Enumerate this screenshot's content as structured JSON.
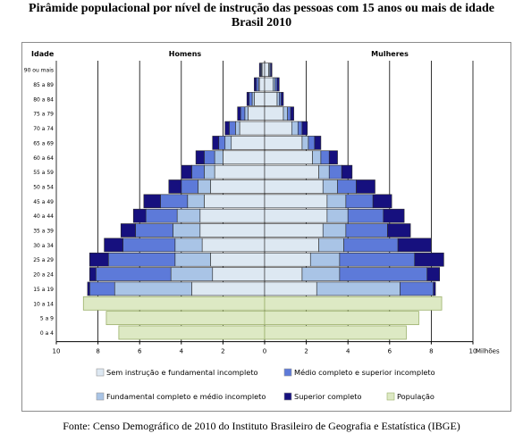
{
  "title_line1": "Pirâmide populacional por nível de instrução das pessoas com 15 anos ou mais de idade",
  "title_line2": "Brasil 2010",
  "source": "Fonte: Censo Demográfico de 2010 do Instituto Brasileiro de Geografia e Estatística (IBGE)",
  "colors": {
    "sem_instrucao": "#dde8f2",
    "fundamental": "#a9c4e6",
    "medio": "#5d7ad9",
    "superior": "#16107e",
    "populacao": "#dde9c4",
    "populacao_stroke": "#9bb06a",
    "bar_stroke": "#2a2a2a",
    "grid": "#000000"
  },
  "chart_data": {
    "type": "bar",
    "orientation": "horizontal-pyramid",
    "ylabel": "Idade",
    "xunit": "Milhões",
    "left_label": "Homens",
    "right_label": "Mulheres",
    "xlim": [
      -10,
      10
    ],
    "xticks": [
      "10",
      "8",
      "6",
      "4",
      "2",
      "0",
      "2",
      "4",
      "6",
      "8",
      "10"
    ],
    "categories": [
      "90 ou mais",
      "85 a 89",
      "80 a 84",
      "75 a 79",
      "70 a 74",
      "65 a 69",
      "60 a 64",
      "55 a 59",
      "50 a 54",
      "45 a 49",
      "40 a 44",
      "35 a 39",
      "30 a 34",
      "25 a 29",
      "20 a 24",
      "15 a 19",
      "10 a 14",
      "5 a 9",
      "0 a 4"
    ],
    "legend": [
      {
        "key": "sem_instrucao",
        "label": "Sem instrução e fundamental incompleto"
      },
      {
        "key": "medio",
        "label": "Médio completo e superior incompleto"
      },
      {
        "key": "fundamental",
        "label": "Fundamental completo e médio incompleto"
      },
      {
        "key": "superior",
        "label": "Superior completo"
      },
      {
        "key": "populacao",
        "label": "População"
      }
    ],
    "homens": {
      "sem_instrucao": [
        0.12,
        0.25,
        0.5,
        0.8,
        1.2,
        1.6,
        2.0,
        2.4,
        2.6,
        2.9,
        3.1,
        3.1,
        3.0,
        2.6,
        2.5,
        3.5,
        0,
        0,
        0
      ],
      "fundamental": [
        0.03,
        0.05,
        0.1,
        0.15,
        0.2,
        0.3,
        0.4,
        0.5,
        0.6,
        0.8,
        1.1,
        1.3,
        1.3,
        1.7,
        2.0,
        3.7,
        0,
        0,
        0
      ],
      "medio": [
        0.05,
        0.1,
        0.15,
        0.2,
        0.3,
        0.3,
        0.5,
        0.6,
        0.8,
        1.3,
        1.5,
        1.8,
        2.5,
        3.2,
        3.6,
        1.2,
        0,
        0,
        0
      ],
      "superior": [
        0.05,
        0.1,
        0.1,
        0.15,
        0.2,
        0.3,
        0.4,
        0.5,
        0.6,
        0.8,
        0.6,
        0.7,
        0.9,
        0.9,
        0.3,
        0.1,
        0,
        0,
        0
      ],
      "populacao": [
        0,
        0,
        0,
        0,
        0,
        0,
        0,
        0,
        0,
        0,
        0,
        0,
        0,
        0,
        0,
        0,
        8.7,
        7.6,
        7.0
      ]
    },
    "mulheres": {
      "sem_instrucao": [
        0.2,
        0.4,
        0.6,
        0.9,
        1.3,
        1.8,
        2.3,
        2.6,
        2.8,
        3.0,
        3.0,
        2.8,
        2.6,
        2.2,
        1.8,
        2.5,
        0,
        0,
        0
      ],
      "fundamental": [
        0.05,
        0.1,
        0.1,
        0.2,
        0.3,
        0.3,
        0.4,
        0.5,
        0.7,
        0.9,
        1.0,
        1.1,
        1.2,
        1.4,
        1.8,
        4.0,
        0,
        0,
        0
      ],
      "medio": [
        0.05,
        0.1,
        0.1,
        0.15,
        0.2,
        0.3,
        0.4,
        0.6,
        0.9,
        1.3,
        1.7,
        2.0,
        2.6,
        3.6,
        4.2,
        1.6,
        0,
        0,
        0
      ],
      "superior": [
        0.05,
        0.1,
        0.1,
        0.15,
        0.25,
        0.3,
        0.4,
        0.5,
        0.9,
        0.9,
        1.0,
        1.1,
        1.6,
        1.4,
        0.6,
        0.1,
        0,
        0,
        0
      ],
      "populacao": [
        0,
        0,
        0,
        0,
        0,
        0,
        0,
        0,
        0,
        0,
        0,
        0,
        0,
        0,
        0,
        0,
        8.5,
        7.4,
        6.8
      ]
    }
  }
}
